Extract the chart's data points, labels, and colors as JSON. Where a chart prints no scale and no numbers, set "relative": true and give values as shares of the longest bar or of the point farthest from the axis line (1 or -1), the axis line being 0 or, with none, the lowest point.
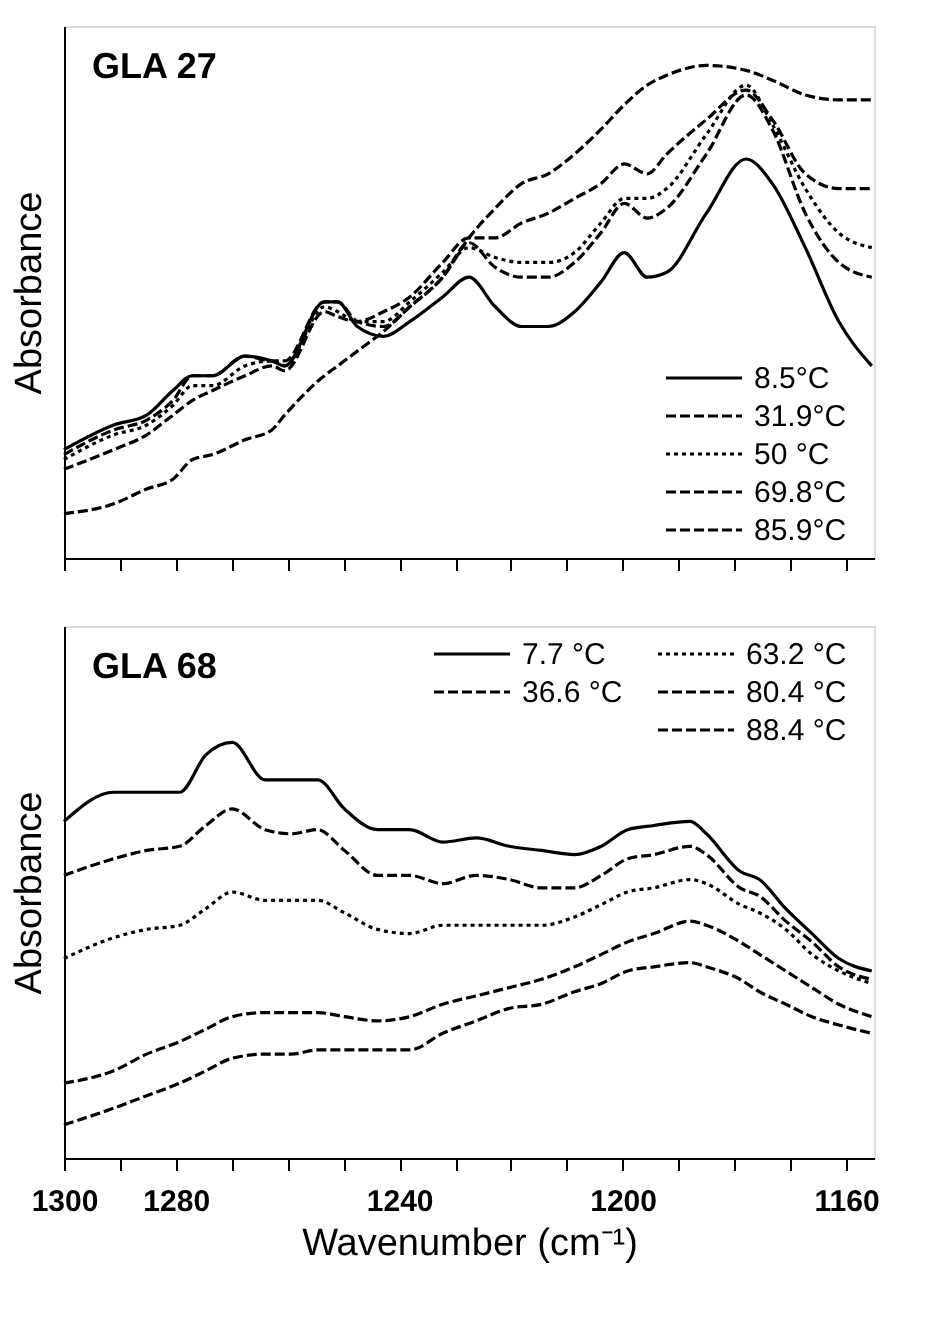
{
  "chart_data": [
    {
      "type": "line",
      "title": "GLA  27",
      "ylabel": "Absorbance",
      "relative": true,
      "tick_labels": false,
      "grid": false,
      "legend": "bottom right",
      "marker": "none",
      "x": [
        1300,
        1291.1,
        1285.2,
        1280.5,
        1277.0,
        1273.4,
        1267.6,
        1262.8,
        1260.5,
        1253.4,
        1251.0,
        1247.5,
        1242.8,
        1238.1,
        1232.2,
        1227.5,
        1222.8,
        1218.1,
        1213.3,
        1208.6,
        1203.9,
        1199.7,
        1195.6,
        1192.1,
        1185.0,
        1177.9,
        1173.2,
        1167.3,
        1161.3,
        1155.4
      ],
      "xlim": [
        1300,
        1155
      ],
      "xticks": [
        1300,
        {
          "value": 1290,
          "label": null
        },
        1280,
        {
          "value": 1270,
          "label": null
        },
        {
          "value": 1260,
          "label": null
        },
        {
          "value": 1250,
          "label": null
        },
        1240,
        {
          "value": 1230,
          "label": null
        },
        {
          "value": 1220,
          "label": null
        },
        {
          "value": 1210,
          "label": null
        },
        1200,
        {
          "value": 1190,
          "label": null
        },
        {
          "value": 1180,
          "label": null
        },
        {
          "value": 1170,
          "label": null
        },
        1160
      ],
      "series": [
        {
          "name": "8.5°C",
          "color": "#000000",
          "line_style": "solid",
          "values": [
            0.22,
            0.27,
            0.29,
            0.34,
            0.37,
            0.37,
            0.41,
            0.4,
            0.39,
            0.52,
            0.52,
            0.47,
            0.45,
            0.48,
            0.53,
            0.57,
            0.51,
            0.47,
            0.47,
            0.5,
            0.56,
            0.62,
            0.57,
            0.58,
            0.7,
            0.81,
            0.76,
            0.63,
            0.48,
            0.39
          ]
        },
        {
          "name": "31.9°C",
          "color": "#000000",
          "line_style": "dashed",
          "values": [
            0.21,
            0.26,
            0.28,
            0.32,
            0.37,
            0.37,
            0.41,
            0.4,
            0.4,
            0.52,
            0.52,
            0.48,
            0.47,
            0.51,
            0.57,
            0.64,
            0.59,
            0.57,
            0.57,
            0.6,
            0.66,
            0.72,
            0.69,
            0.71,
            0.82,
            0.94,
            0.87,
            0.7,
            0.6,
            0.57
          ]
        },
        {
          "name": "50   °C",
          "color": "#000000",
          "line_style": "dotted",
          "values": [
            0.2,
            0.25,
            0.27,
            0.31,
            0.35,
            0.35,
            0.39,
            0.4,
            0.39,
            0.51,
            0.5,
            0.48,
            0.48,
            0.52,
            0.58,
            0.63,
            0.61,
            0.6,
            0.6,
            0.62,
            0.68,
            0.73,
            0.73,
            0.75,
            0.86,
            0.96,
            0.88,
            0.75,
            0.66,
            0.63
          ]
        },
        {
          "name": "69.8°C",
          "color": "#000000",
          "line_style": "dashed",
          "values": [
            0.18,
            0.22,
            0.25,
            0.29,
            0.32,
            0.34,
            0.37,
            0.39,
            0.38,
            0.5,
            0.49,
            0.48,
            0.5,
            0.53,
            0.6,
            0.65,
            0.65,
            0.68,
            0.7,
            0.73,
            0.76,
            0.8,
            0.78,
            0.82,
            0.89,
            0.95,
            0.89,
            0.78,
            0.75,
            0.75
          ]
        },
        {
          "name": "85.9°C",
          "color": "#000000",
          "line_style": "dashed",
          "values": [
            0.09,
            0.11,
            0.14,
            0.16,
            0.2,
            0.21,
            0.24,
            0.26,
            0.29,
            0.37,
            0.39,
            0.42,
            0.46,
            0.51,
            0.57,
            0.65,
            0.71,
            0.76,
            0.78,
            0.82,
            0.87,
            0.92,
            0.96,
            0.98,
            1.0,
            0.99,
            0.97,
            0.94,
            0.93,
            0.93
          ]
        }
      ]
    },
    {
      "type": "line",
      "title": "GLA 68",
      "xlabel": "Wavenumber (cm⁻¹)",
      "ylabel": "Absorbance",
      "relative": true,
      "tick_labels": "x",
      "grid": false,
      "legend": "top right",
      "marker": "none",
      "x": [
        1300,
        1291.1,
        1285.2,
        1279.3,
        1274.6,
        1269.9,
        1264.0,
        1259.3,
        1254.6,
        1249.8,
        1243.9,
        1238.1,
        1232.2,
        1226.2,
        1220.3,
        1214.5,
        1208.6,
        1203.8,
        1199.1,
        1194.4,
        1187.9,
        1185.0,
        1179.0,
        1175.5,
        1170.8,
        1166.1,
        1161.3,
        1155.4
      ],
      "xlim": [
        1300,
        1155
      ],
      "xticks": [
        1300,
        {
          "value": 1290,
          "label": null
        },
        1280,
        {
          "value": 1270,
          "label": null
        },
        {
          "value": 1260,
          "label": null
        },
        {
          "value": 1250,
          "label": null
        },
        1240,
        {
          "value": 1230,
          "label": null
        },
        {
          "value": 1220,
          "label": null
        },
        {
          "value": 1210,
          "label": null
        },
        1200,
        {
          "value": 1190,
          "label": null
        },
        {
          "value": 1180,
          "label": null
        },
        {
          "value": 1170,
          "label": null
        },
        1160
      ],
      "series": [
        {
          "name": "7.7 °C",
          "color": "#000000",
          "line_style": "solid",
          "values": [
            0.81,
            0.88,
            0.88,
            0.88,
            0.97,
            1.0,
            0.91,
            0.91,
            0.91,
            0.84,
            0.79,
            0.79,
            0.76,
            0.77,
            0.75,
            0.74,
            0.73,
            0.75,
            0.79,
            0.8,
            0.81,
            0.78,
            0.69,
            0.67,
            0.6,
            0.54,
            0.48,
            0.45
          ]
        },
        {
          "name": "36.6 °C",
          "color": "#000000",
          "line_style": "dashed",
          "values": [
            0.68,
            0.72,
            0.74,
            0.75,
            0.8,
            0.84,
            0.79,
            0.78,
            0.79,
            0.74,
            0.68,
            0.68,
            0.66,
            0.68,
            0.67,
            0.65,
            0.65,
            0.68,
            0.72,
            0.73,
            0.75,
            0.73,
            0.65,
            0.63,
            0.57,
            0.52,
            0.46,
            0.43
          ]
        },
        {
          "name": "63.2 °C",
          "color": "#000000",
          "line_style": "dotted",
          "values": [
            0.48,
            0.53,
            0.55,
            0.56,
            0.6,
            0.64,
            0.62,
            0.62,
            0.62,
            0.59,
            0.55,
            0.54,
            0.56,
            0.56,
            0.56,
            0.56,
            0.58,
            0.61,
            0.64,
            0.65,
            0.67,
            0.66,
            0.61,
            0.59,
            0.55,
            0.49,
            0.45,
            0.42
          ]
        },
        {
          "name": "80.4 °C",
          "color": "#000000",
          "line_style": "dashed",
          "values": [
            0.18,
            0.21,
            0.25,
            0.28,
            0.31,
            0.34,
            0.35,
            0.35,
            0.35,
            0.34,
            0.33,
            0.34,
            0.37,
            0.39,
            0.41,
            0.43,
            0.46,
            0.49,
            0.52,
            0.54,
            0.57,
            0.56,
            0.52,
            0.49,
            0.45,
            0.41,
            0.37,
            0.34
          ]
        },
        {
          "name": "88.4 °C",
          "color": "#000000",
          "line_style": "dashed",
          "values": [
            0.08,
            0.12,
            0.15,
            0.18,
            0.21,
            0.24,
            0.25,
            0.25,
            0.26,
            0.26,
            0.26,
            0.26,
            0.3,
            0.33,
            0.36,
            0.37,
            0.4,
            0.42,
            0.45,
            0.46,
            0.47,
            0.46,
            0.43,
            0.4,
            0.37,
            0.34,
            0.32,
            0.3
          ]
        }
      ]
    }
  ]
}
